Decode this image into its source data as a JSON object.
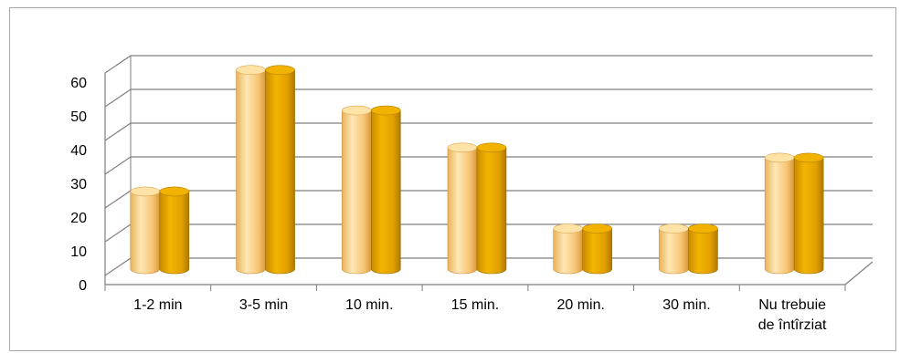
{
  "chart_data": {
    "type": "bar",
    "title": "",
    "xlabel": "",
    "ylabel": "",
    "categories": [
      [
        "1-2 min"
      ],
      [
        "3-5 min"
      ],
      [
        "10 min."
      ],
      [
        "15 min."
      ],
      [
        "20 min."
      ],
      [
        "30 min."
      ],
      [
        "Nu trebuie",
        "de întîrziat"
      ]
    ],
    "series": [
      {
        "values": [
          23,
          59,
          47,
          36,
          12,
          12,
          33
        ],
        "color": "#f9c97a"
      },
      {
        "values": [
          23,
          59,
          47,
          36,
          12,
          12,
          33
        ],
        "color": "#e0a000"
      }
    ],
    "ylim": [
      0,
      60
    ],
    "yticks": [
      0,
      10,
      20,
      30,
      40,
      50,
      60
    ],
    "grid": true,
    "style": "3d-cylinder",
    "legend": "none"
  }
}
